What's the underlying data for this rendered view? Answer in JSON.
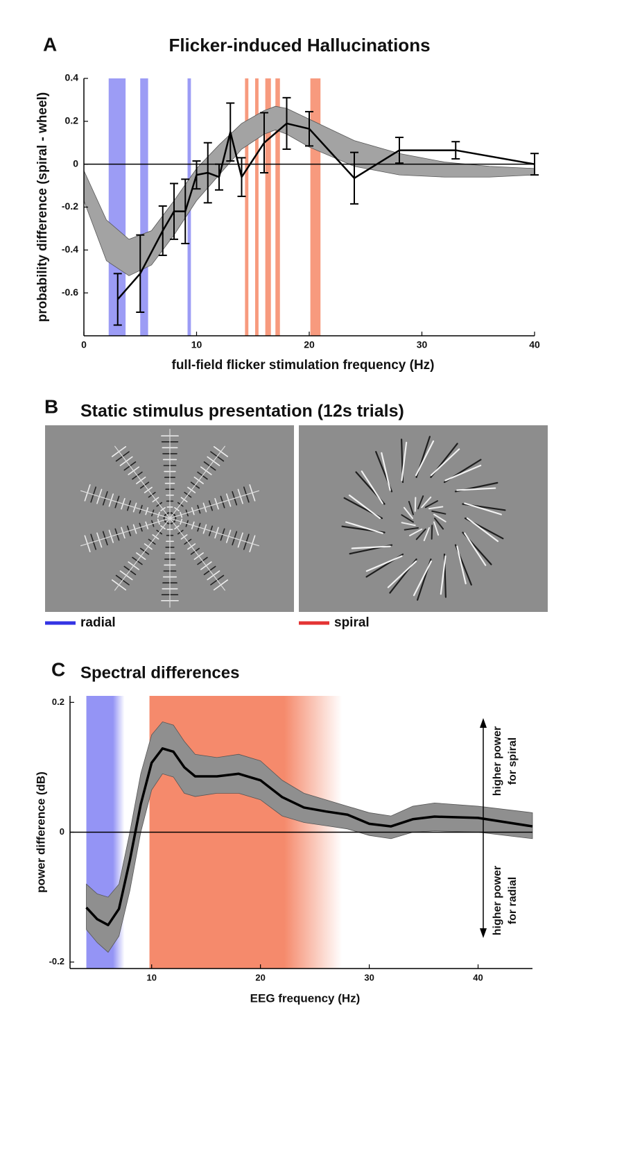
{
  "chart_data": [
    {
      "type": "line",
      "panel": "A",
      "title": "Flicker-induced Hallucinations",
      "xlabel": "full-field flicker stimulation frequency (Hz)",
      "ylabel": "probability difference (spiral - wheel)",
      "xlim": [
        0,
        40
      ],
      "ylim": [
        -0.8,
        0.4
      ],
      "xticks": [
        0,
        10,
        20,
        30,
        40
      ],
      "yticks": [
        -0.6,
        -0.4,
        -0.2,
        0,
        0.2,
        0.4
      ],
      "x": [
        3,
        5,
        7,
        8,
        9,
        10,
        11,
        12,
        13,
        14,
        16,
        18,
        20,
        24,
        28,
        33,
        40
      ],
      "values": [
        -0.63,
        -0.51,
        -0.31,
        -0.22,
        -0.22,
        -0.05,
        -0.04,
        -0.06,
        0.15,
        -0.06,
        0.1,
        0.19,
        0.165,
        -0.065,
        0.065,
        0.065,
        0
      ],
      "errors": [
        0.12,
        0.18,
        0.115,
        0.13,
        0.15,
        0.065,
        0.14,
        0.06,
        0.135,
        0.09,
        0.14,
        0.12,
        0.08,
        0.12,
        0.06,
        0.04,
        0.05
      ],
      "color": "#000000",
      "band": {
        "color": "#a3a3a3",
        "x": [
          0,
          2,
          4,
          6,
          8,
          10,
          12,
          14,
          16,
          17,
          18,
          20,
          24,
          28,
          32,
          36,
          40
        ],
        "upper": [
          -0.03,
          -0.26,
          -0.35,
          -0.31,
          -0.17,
          -0.02,
          0.09,
          0.19,
          0.25,
          0.27,
          0.26,
          0.21,
          0.11,
          0.05,
          0.01,
          -0.01,
          -0.02
        ],
        "lower": [
          -0.17,
          -0.45,
          -0.52,
          -0.47,
          -0.33,
          -0.17,
          -0.05,
          0.07,
          0.14,
          0.16,
          0.14,
          0.08,
          -0.01,
          -0.05,
          -0.06,
          -0.06,
          -0.05
        ]
      },
      "regions": [
        {
          "from": 2.2,
          "to": 3.7,
          "color": "#9c9cf5"
        },
        {
          "from": 5.0,
          "to": 5.7,
          "color": "#9c9cf5"
        },
        {
          "from": 9.2,
          "to": 9.5,
          "color": "#9c9cf5"
        },
        {
          "from": 14.3,
          "to": 14.6,
          "color": "#f79a7e"
        },
        {
          "from": 15.2,
          "to": 15.5,
          "color": "#f79a7e"
        },
        {
          "from": 16.1,
          "to": 16.6,
          "color": "#f79a7e"
        },
        {
          "from": 17.0,
          "to": 17.4,
          "color": "#f79a7e"
        },
        {
          "from": 20.1,
          "to": 21.0,
          "color": "#f79a7e"
        }
      ]
    },
    {
      "type": "line",
      "panel": "C",
      "title": "Spectral differences",
      "xlabel": "EEG frequency (Hz)",
      "ylabel": "power difference (dB)",
      "xlim": [
        2.5,
        45
      ],
      "ylim": [
        -0.21,
        0.21
      ],
      "xticks": [
        10,
        20,
        30,
        40
      ],
      "yticks": [
        -0.2,
        0,
        0.2
      ],
      "x": [
        4,
        5,
        6,
        7,
        8,
        9,
        10,
        11,
        12,
        13,
        14,
        16,
        18,
        20,
        22,
        24,
        26,
        28,
        30,
        32,
        34,
        36,
        40,
        45
      ],
      "values": [
        -0.116,
        -0.134,
        -0.143,
        -0.118,
        -0.043,
        0.043,
        0.107,
        0.129,
        0.124,
        0.1,
        0.086,
        0.086,
        0.09,
        0.08,
        0.054,
        0.038,
        0.032,
        0.027,
        0.013,
        0.009,
        0.02,
        0.024,
        0.022,
        0.009
      ],
      "color": "#000000",
      "band": {
        "color": "#8f8f8f",
        "x": [
          4,
          5,
          6,
          7,
          8,
          9,
          10,
          11,
          12,
          13,
          14,
          16,
          18,
          20,
          22,
          24,
          26,
          28,
          30,
          32,
          34,
          36,
          40,
          45
        ],
        "upper": [
          -0.08,
          -0.095,
          -0.1,
          -0.08,
          0.0,
          0.09,
          0.15,
          0.17,
          0.165,
          0.14,
          0.12,
          0.115,
          0.12,
          0.11,
          0.08,
          0.06,
          0.05,
          0.04,
          0.03,
          0.025,
          0.04,
          0.045,
          0.04,
          0.03
        ],
        "lower": [
          -0.15,
          -0.17,
          -0.185,
          -0.16,
          -0.09,
          0.0,
          0.065,
          0.09,
          0.085,
          0.06,
          0.055,
          0.06,
          0.06,
          0.05,
          0.025,
          0.015,
          0.01,
          0.005,
          -0.005,
          -0.01,
          0.0,
          0.002,
          0.0,
          -0.01
        ]
      },
      "regions": [
        {
          "from": 4,
          "to": 7.5,
          "color": "#9494f5",
          "fade": true
        },
        {
          "from": 9.8,
          "to": 27.5,
          "color": "#f58a6c",
          "fade": true
        }
      ],
      "annotations": [
        [
          "higher power",
          "for spiral"
        ],
        [
          "higher power",
          "for radial"
        ]
      ]
    }
  ],
  "stimulus_panel": {
    "panel": "B",
    "title": "Static stimulus presentation (12s trials)",
    "legend": [
      {
        "label": "radial",
        "color": "#1010e0"
      },
      {
        "label": "spiral",
        "color": "#e01010"
      }
    ]
  }
}
